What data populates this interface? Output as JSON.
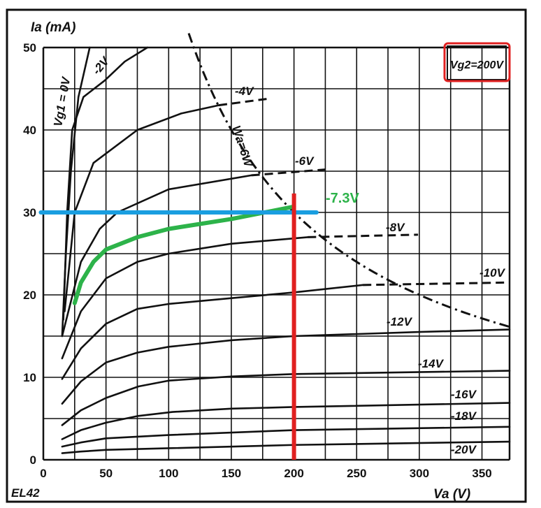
{
  "chart_data": {
    "type": "line",
    "title": "EL42",
    "xlabel": "Va (V)",
    "ylabel": "Ia (mA)",
    "xlim": [
      0,
      372
    ],
    "ylim": [
      0,
      50
    ],
    "x_ticks": [
      0,
      50,
      100,
      150,
      200,
      250,
      300,
      350
    ],
    "y_ticks": [
      0,
      10,
      20,
      30,
      40,
      50
    ],
    "grid": true,
    "grid_step": {
      "x": 25,
      "y": 5
    },
    "annotation_box": "Vg2=200V",
    "series": [
      {
        "name": "Vg1 = 0V",
        "label": "Vg1 = 0V",
        "points": [
          [
            15,
            15
          ],
          [
            18,
            25
          ],
          [
            22,
            35
          ],
          [
            28,
            44
          ],
          [
            37,
            50
          ]
        ],
        "dashed": []
      },
      {
        "name": "-2V",
        "label": "-2V",
        "points": [
          [
            16,
            17
          ],
          [
            19,
            30
          ],
          [
            23,
            40
          ],
          [
            32,
            44
          ],
          [
            49,
            46
          ],
          [
            65,
            48.3
          ],
          [
            83,
            50
          ]
        ],
        "dashed": []
      },
      {
        "name": "-4V",
        "label": "-4V",
        "points": [
          [
            17,
            18
          ],
          [
            25,
            30
          ],
          [
            40,
            36
          ],
          [
            75,
            40
          ],
          [
            110,
            42
          ],
          [
            140,
            43
          ]
        ],
        "dashed": [
          [
            140,
            43
          ],
          [
            180,
            43.8
          ]
        ]
      },
      {
        "name": "-6V",
        "label": "-6V",
        "points": [
          [
            15,
            15
          ],
          [
            30,
            24
          ],
          [
            45,
            28
          ],
          [
            59,
            30
          ],
          [
            100,
            32.8
          ],
          [
            166,
            34.5
          ]
        ],
        "dashed": [
          [
            166,
            34.5
          ],
          [
            225,
            35.2
          ]
        ]
      },
      {
        "name": "-8V",
        "label": "-8V",
        "points": [
          [
            15,
            12.3
          ],
          [
            30,
            18
          ],
          [
            50,
            22
          ],
          [
            75,
            24
          ],
          [
            100,
            25
          ],
          [
            150,
            26.2
          ],
          [
            211,
            27
          ]
        ],
        "dashed": [
          [
            211,
            27
          ],
          [
            299,
            27.3
          ]
        ]
      },
      {
        "name": "-10V",
        "label": "-10V",
        "points": [
          [
            15,
            9.8
          ],
          [
            30,
            13.5
          ],
          [
            50,
            16.5
          ],
          [
            75,
            18.3
          ],
          [
            100,
            18.9
          ],
          [
            150,
            19.6
          ],
          [
            200,
            20.3
          ],
          [
            255,
            21.2
          ]
        ],
        "dashed": [
          [
            255,
            21.2
          ],
          [
            372,
            21.5
          ]
        ]
      },
      {
        "name": "-12V",
        "label": "-12V",
        "points": [
          [
            15,
            6.8
          ],
          [
            30,
            9.5
          ],
          [
            50,
            11.8
          ],
          [
            75,
            13
          ],
          [
            100,
            13.7
          ],
          [
            150,
            14.5
          ],
          [
            200,
            15
          ],
          [
            300,
            15.5
          ],
          [
            372,
            15.8
          ]
        ],
        "dashed": []
      },
      {
        "name": "-14V",
        "label": "-14V",
        "points": [
          [
            15,
            4.2
          ],
          [
            30,
            6
          ],
          [
            50,
            7.5
          ],
          [
            76,
            8.9
          ],
          [
            100,
            9.6
          ],
          [
            150,
            10.1
          ],
          [
            200,
            10.4
          ],
          [
            372,
            10.8
          ]
        ],
        "dashed": []
      },
      {
        "name": "-16V",
        "label": "-16V",
        "points": [
          [
            15,
            2.5
          ],
          [
            30,
            3.6
          ],
          [
            50,
            4.5
          ],
          [
            75,
            5.3
          ],
          [
            103,
            5.8
          ],
          [
            150,
            6.2
          ],
          [
            200,
            6.4
          ],
          [
            372,
            6.9
          ]
        ],
        "dashed": []
      },
      {
        "name": "-18V",
        "label": "-18V",
        "points": [
          [
            15,
            1.6
          ],
          [
            30,
            2.1
          ],
          [
            50,
            2.6
          ],
          [
            100,
            3.0
          ],
          [
            200,
            3.6
          ],
          [
            372,
            4.0
          ]
        ],
        "dashed": []
      },
      {
        "name": "-20V",
        "label": "-20V",
        "points": [
          [
            15,
            0.8
          ],
          [
            30,
            1.0
          ],
          [
            50,
            1.2
          ],
          [
            100,
            1.4
          ],
          [
            200,
            1.8
          ],
          [
            372,
            2.2
          ]
        ],
        "dashed": []
      }
    ],
    "power_curve": {
      "label": "Wa=6W",
      "watts": 6,
      "x_range": [
        116,
        372
      ]
    },
    "overlays": {
      "horizontal_line": {
        "y": 30,
        "x_range": [
          -2,
          218
        ],
        "color": "#1a9ee0"
      },
      "vertical_line": {
        "x": 200,
        "y_range": [
          0,
          32.3
        ],
        "color": "#e02020"
      },
      "interpolated_curve": {
        "label": "-7.3V",
        "color": "#2db34a",
        "points": [
          [
            25,
            19
          ],
          [
            30,
            21.5
          ],
          [
            40,
            24
          ],
          [
            50,
            25.5
          ],
          [
            75,
            27
          ],
          [
            100,
            28
          ],
          [
            150,
            29.2
          ],
          [
            200,
            30.7
          ]
        ]
      },
      "box_outline_color": "#e02020"
    }
  }
}
